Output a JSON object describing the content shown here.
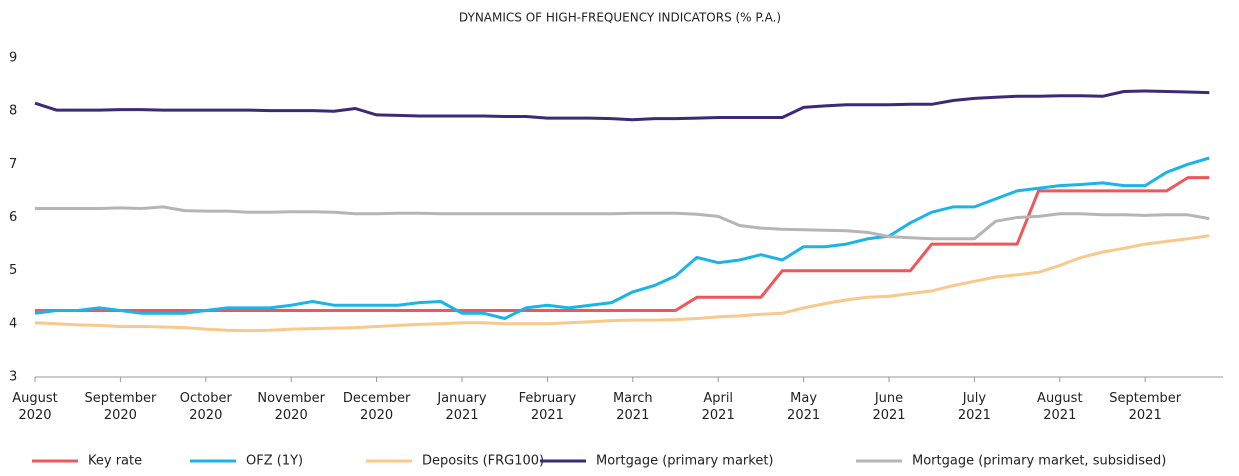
{
  "chart_data": {
    "type": "line",
    "title": "DYNAMICS OF HIGH-FREQUENCY INDICATORS (% P.A.)",
    "categories": [
      "August\n2020",
      null,
      null,
      null,
      "September\n2020",
      null,
      null,
      null,
      "October\n2020",
      null,
      null,
      null,
      "November\n2020",
      null,
      null,
      null,
      "December\n2020",
      null,
      null,
      null,
      "January\n2021",
      null,
      null,
      null,
      "February\n2021",
      null,
      null,
      null,
      "March\n2021",
      null,
      null,
      null,
      "April\n2021",
      null,
      null,
      null,
      "May\n2021",
      null,
      null,
      null,
      "June\n2021",
      null,
      null,
      null,
      "July\n2021",
      null,
      null,
      null,
      "August\n2021",
      null,
      null,
      null,
      "September\n2021",
      null,
      null,
      null
    ],
    "ylim": [
      3,
      9
    ],
    "yticks": [
      3,
      4,
      5,
      6,
      7,
      8,
      9
    ],
    "grid": false,
    "legend": "bottom",
    "series": [
      {
        "name": "Key rate",
        "color": "#f0555a",
        "values": [
          4.25,
          4.25,
          4.25,
          4.25,
          4.25,
          4.25,
          4.25,
          4.25,
          4.25,
          4.25,
          4.25,
          4.25,
          4.25,
          4.25,
          4.25,
          4.25,
          4.25,
          4.25,
          4.25,
          4.25,
          4.25,
          4.25,
          4.25,
          4.25,
          4.25,
          4.25,
          4.25,
          4.25,
          4.25,
          4.25,
          4.25,
          4.5,
          4.5,
          4.5,
          4.5,
          5.0,
          5.0,
          5.0,
          5.0,
          5.0,
          5.0,
          5.0,
          5.5,
          5.5,
          5.5,
          5.5,
          5.5,
          6.5,
          6.5,
          6.5,
          6.5,
          6.5,
          6.5,
          6.5,
          6.75,
          6.75
        ]
      },
      {
        "name": "OFZ (1Y)",
        "color": "#1ab4e8",
        "values": [
          4.2,
          4.25,
          4.25,
          4.3,
          4.25,
          4.2,
          4.2,
          4.2,
          4.25,
          4.3,
          4.3,
          4.3,
          4.35,
          4.42,
          4.35,
          4.35,
          4.35,
          4.35,
          4.4,
          4.42,
          4.2,
          4.2,
          4.1,
          4.3,
          4.35,
          4.3,
          4.35,
          4.4,
          4.6,
          4.72,
          4.9,
          5.25,
          5.15,
          5.2,
          5.3,
          5.2,
          5.45,
          5.45,
          5.5,
          5.6,
          5.65,
          5.9,
          6.1,
          6.2,
          6.2,
          6.35,
          6.5,
          6.55,
          6.6,
          6.62,
          6.65,
          6.6,
          6.6,
          6.85,
          7.0,
          7.12
        ]
      },
      {
        "name": "Deposits (FRG100)",
        "color": "#f8c98a",
        "values": [
          4.02,
          4.0,
          3.98,
          3.97,
          3.95,
          3.95,
          3.94,
          3.93,
          3.9,
          3.88,
          3.87,
          3.88,
          3.9,
          3.91,
          3.92,
          3.93,
          3.95,
          3.97,
          3.99,
          4.0,
          4.02,
          4.02,
          4.0,
          4.0,
          4.0,
          4.02,
          4.04,
          4.06,
          4.07,
          4.07,
          4.08,
          4.1,
          4.13,
          4.15,
          4.18,
          4.2,
          4.3,
          4.38,
          4.45,
          4.5,
          4.52,
          4.57,
          4.62,
          4.72,
          4.8,
          4.88,
          4.92,
          4.97,
          5.1,
          5.25,
          5.35,
          5.42,
          5.5,
          5.55,
          5.6,
          5.66
        ]
      },
      {
        "name": "Mortgage (primary market)",
        "color": "#3b2a78",
        "values": [
          8.15,
          8.02,
          8.02,
          8.02,
          8.03,
          8.03,
          8.02,
          8.02,
          8.02,
          8.02,
          8.02,
          8.01,
          8.01,
          8.01,
          8.0,
          8.05,
          7.93,
          7.92,
          7.91,
          7.91,
          7.91,
          7.91,
          7.9,
          7.9,
          7.87,
          7.87,
          7.87,
          7.86,
          7.84,
          7.86,
          7.86,
          7.87,
          7.88,
          7.88,
          7.88,
          7.88,
          8.07,
          8.1,
          8.12,
          8.12,
          8.12,
          8.13,
          8.13,
          8.2,
          8.24,
          8.26,
          8.28,
          8.28,
          8.29,
          8.29,
          8.28,
          8.37,
          8.38,
          8.37,
          8.36,
          8.35
        ]
      },
      {
        "name": "Mortgage (primary market, subsidised)",
        "color": "#b5b5b5",
        "values": [
          6.17,
          6.17,
          6.17,
          6.17,
          6.18,
          6.17,
          6.2,
          6.13,
          6.12,
          6.12,
          6.1,
          6.1,
          6.11,
          6.11,
          6.1,
          6.07,
          6.07,
          6.08,
          6.08,
          6.07,
          6.07,
          6.07,
          6.07,
          6.07,
          6.07,
          6.07,
          6.07,
          6.07,
          6.08,
          6.08,
          6.08,
          6.06,
          6.02,
          5.85,
          5.8,
          5.78,
          5.77,
          5.76,
          5.75,
          5.72,
          5.64,
          5.62,
          5.6,
          5.6,
          5.6,
          5.93,
          6.0,
          6.02,
          6.07,
          6.07,
          6.05,
          6.05,
          6.04,
          6.05,
          6.05,
          5.98
        ]
      }
    ]
  }
}
